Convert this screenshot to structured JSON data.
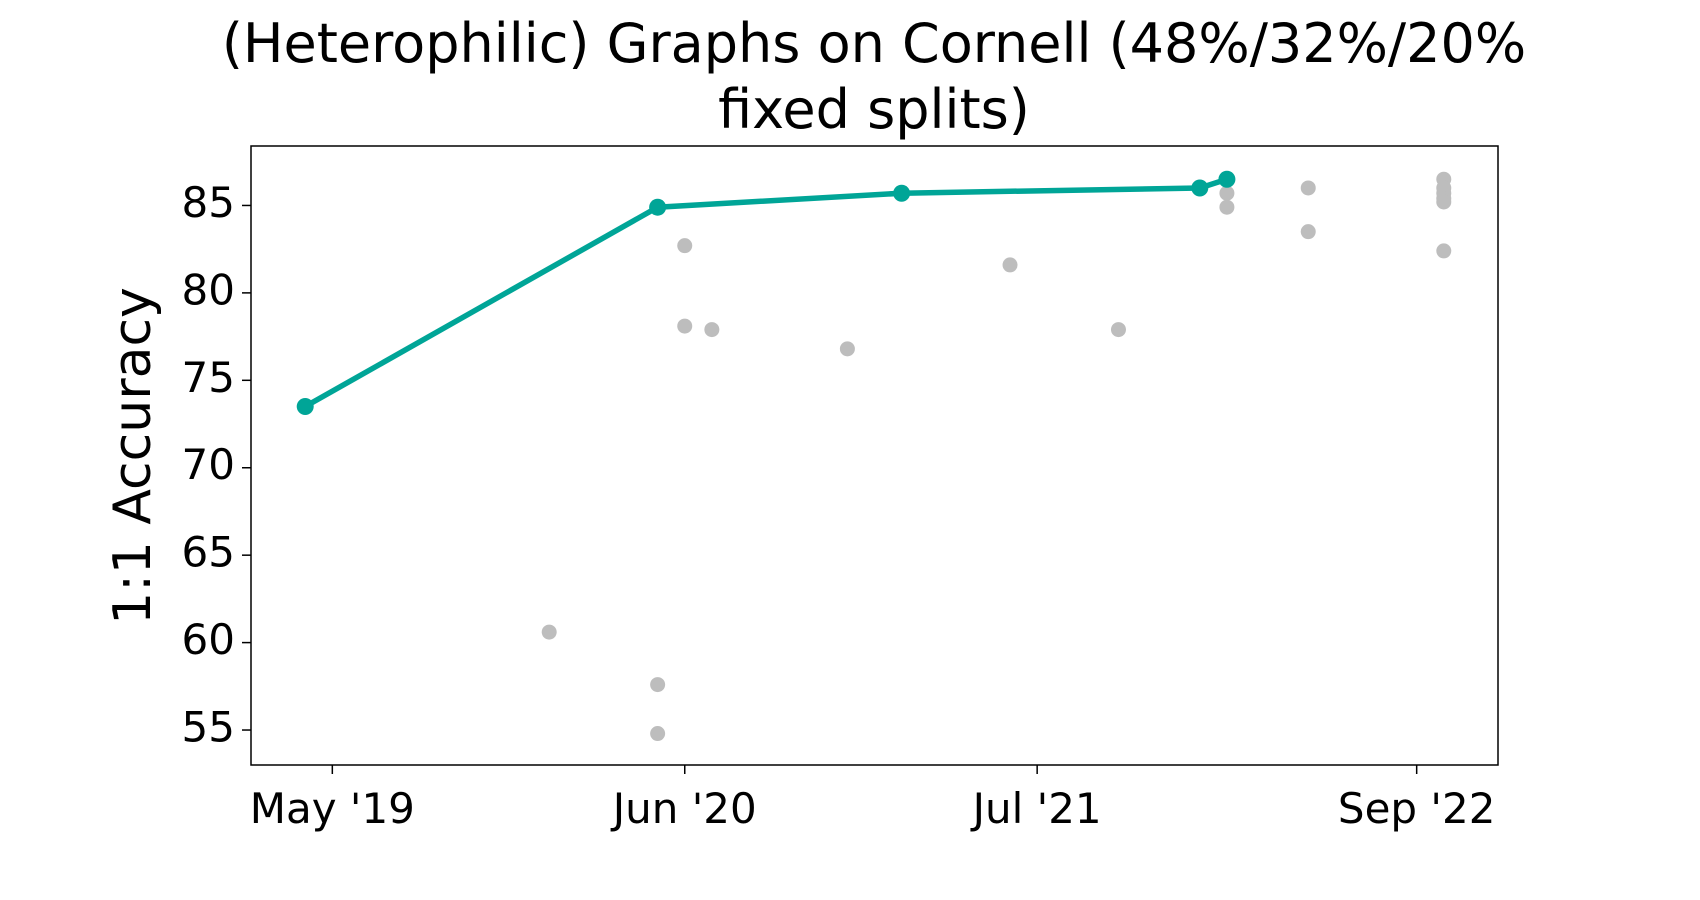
{
  "chart_data": {
    "type": "line",
    "title": [
      "(Heterophilic) Graphs on Cornell (48%/32%/20%",
      "fixed splits)"
    ],
    "ylabel": "1:1 Accuracy",
    "xlim": [
      "2019-02",
      "2022-12"
    ],
    "xticks": [
      {
        "value": "2019-05",
        "label": "May '19"
      },
      {
        "value": "2020-06",
        "label": "Jun '20"
      },
      {
        "value": "2021-07",
        "label": "Jul '21"
      },
      {
        "value": "2022-09",
        "label": "Sep '22"
      }
    ],
    "ylim": [
      53.0,
      88.4
    ],
    "yticks": [
      55,
      60,
      65,
      70,
      75,
      80,
      85
    ],
    "grid": false,
    "series": [
      {
        "type": "scatter",
        "color": "#bdbdbd",
        "x": [
          "2020-01",
          "2020-05",
          "2020-05",
          "2020-06",
          "2020-06",
          "2020-07",
          "2020-12",
          "2021-06",
          "2021-10",
          "2022-02",
          "2022-02",
          "2022-05",
          "2022-05",
          "2022-10",
          "2022-10",
          "2022-10",
          "2022-10",
          "2022-10",
          "2022-10"
        ],
        "values": [
          60.6,
          57.6,
          54.8,
          82.7,
          78.1,
          77.9,
          76.8,
          81.6,
          77.9,
          85.7,
          84.9,
          86.0,
          83.5,
          86.5,
          86.0,
          85.7,
          85.4,
          85.2,
          82.4
        ]
      },
      {
        "type": "line",
        "color": "#00a597",
        "x": [
          "2019-04",
          "2020-05",
          "2021-02",
          "2022-01",
          "2022-02"
        ],
        "values": [
          73.5,
          84.9,
          85.7,
          86.0,
          86.5
        ]
      }
    ]
  }
}
